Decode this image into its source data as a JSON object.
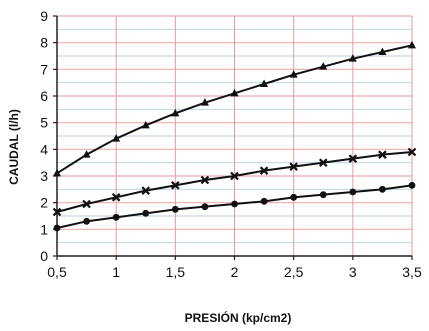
{
  "chart_data": {
    "type": "line",
    "xlabel": "PRESIÓN (kp/cm2)",
    "ylabel": "CAUDAL (l/h)",
    "xlim": [
      0.5,
      3.5
    ],
    "ylim": [
      0,
      9
    ],
    "x_ticks": [
      "0,5",
      "1",
      "1,5",
      "2",
      "2,5",
      "3",
      "3,5"
    ],
    "y_ticks": [
      "0",
      "1",
      "2",
      "3",
      "4",
      "5",
      "6",
      "7",
      "8",
      "9"
    ],
    "grid": true,
    "grid_colors": {
      "vertical": "#e89a9a",
      "horizontal": [
        "#e8a0a0",
        "#9ec9e8"
      ]
    },
    "series": [
      {
        "marker": "triangle",
        "color": "#111111",
        "x": [
          0.5,
          0.75,
          1.0,
          1.25,
          1.5,
          1.75,
          2.0,
          2.25,
          2.5,
          2.75,
          3.0,
          3.25,
          3.5
        ],
        "values": [
          3.1,
          3.8,
          4.4,
          4.9,
          5.35,
          5.75,
          6.1,
          6.45,
          6.8,
          7.1,
          7.4,
          7.65,
          7.9
        ]
      },
      {
        "marker": "cross",
        "color": "#111111",
        "x": [
          0.5,
          0.75,
          1.0,
          1.25,
          1.5,
          1.75,
          2.0,
          2.25,
          2.5,
          2.75,
          3.0,
          3.25,
          3.5
        ],
        "values": [
          1.65,
          1.95,
          2.2,
          2.45,
          2.65,
          2.85,
          3.0,
          3.2,
          3.35,
          3.5,
          3.65,
          3.8,
          3.9
        ]
      },
      {
        "marker": "circle",
        "color": "#111111",
        "x": [
          0.5,
          0.75,
          1.0,
          1.25,
          1.5,
          1.75,
          2.0,
          2.25,
          2.5,
          2.75,
          3.0,
          3.25,
          3.5
        ],
        "values": [
          1.05,
          1.3,
          1.45,
          1.6,
          1.75,
          1.85,
          1.95,
          2.05,
          2.2,
          2.3,
          2.4,
          2.5,
          2.65
        ]
      }
    ]
  }
}
